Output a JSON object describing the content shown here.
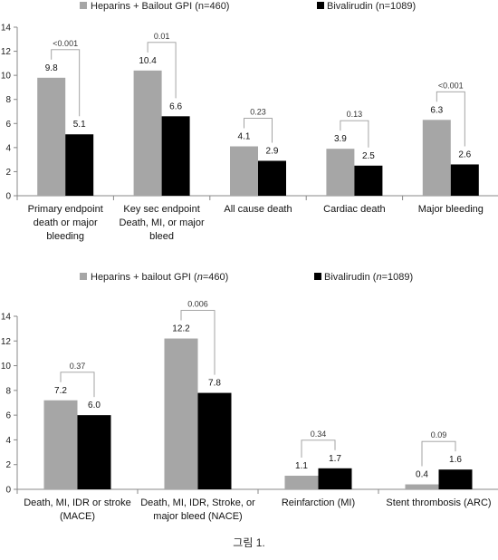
{
  "chart_data": [
    {
      "type": "bar",
      "categories": [
        [
          "Primary endpoint",
          "death or major",
          "bleeding"
        ],
        [
          "Key sec endpoint",
          "Death, MI, or major",
          "bleed"
        ],
        [
          "All cause death"
        ],
        [
          "Cardiac death"
        ],
        [
          "Major bleeding"
        ]
      ],
      "series": [
        {
          "name": "Heparins + Bailout GPI (n=460)",
          "values": [
            9.8,
            10.4,
            4.1,
            3.9,
            6.3
          ],
          "color": "#a6a6a6"
        },
        {
          "name": "Bivalirudin (n=1089)",
          "values": [
            5.1,
            6.6,
            2.9,
            2.5,
            2.6
          ],
          "color": "#000000"
        }
      ],
      "value_labels": [
        [
          "9.8",
          "10.4",
          "4.1",
          "3.9",
          "6.3"
        ],
        [
          "5.1",
          "6.6",
          "2.9",
          "2.5",
          "2.6"
        ]
      ],
      "p_values": [
        "<0.001",
        "0.01",
        "0.23",
        "0.13",
        "<0.001"
      ],
      "ylim": [
        0,
        14
      ],
      "yticks": [
        0,
        2,
        4,
        6,
        8,
        10,
        12,
        14
      ],
      "legend": "top",
      "grid": false
    },
    {
      "type": "bar",
      "categories": [
        [
          "Death, MI, IDR or stroke",
          "(MACE)"
        ],
        [
          "Death, MI, IDR, Stroke, or",
          "major bleed (NACE)"
        ],
        [
          "Reinfarction (MI)"
        ],
        [
          "Stent thrombosis (ARC)"
        ]
      ],
      "series": [
        {
          "name": "Heparins + bailout GPI (n=460)",
          "values": [
            7.2,
            12.2,
            1.1,
            0.4
          ],
          "color": "#a6a6a6"
        },
        {
          "name": "Bivalirudin (n=1089)",
          "values": [
            6.0,
            7.8,
            1.7,
            1.6
          ],
          "color": "#000000"
        }
      ],
      "value_labels": [
        [
          "7.2",
          "12.2",
          "1.1",
          "0.4"
        ],
        [
          "6.0",
          "7.8",
          "1.7",
          "1.6"
        ]
      ],
      "p_values": [
        "0.37",
        "0.006",
        "0.34",
        "0.09"
      ],
      "ylim": [
        0,
        14
      ],
      "yticks": [
        0,
        2,
        4,
        6,
        8,
        10,
        12,
        14
      ],
      "legend": "top",
      "grid": false
    }
  ],
  "legends": [
    {
      "a": "Heparins + Bailout GPI (n=460)",
      "b": "Bivalirudin (n=1089)"
    },
    {
      "a_prefix": "Heparins + bailout GPI (",
      "a_italic": "n",
      "a_suffix": "=460)",
      "b_prefix": "Bivalirudin (",
      "b_italic": "n",
      "b_suffix": "=1089)"
    }
  ],
  "caption": "그림 1."
}
